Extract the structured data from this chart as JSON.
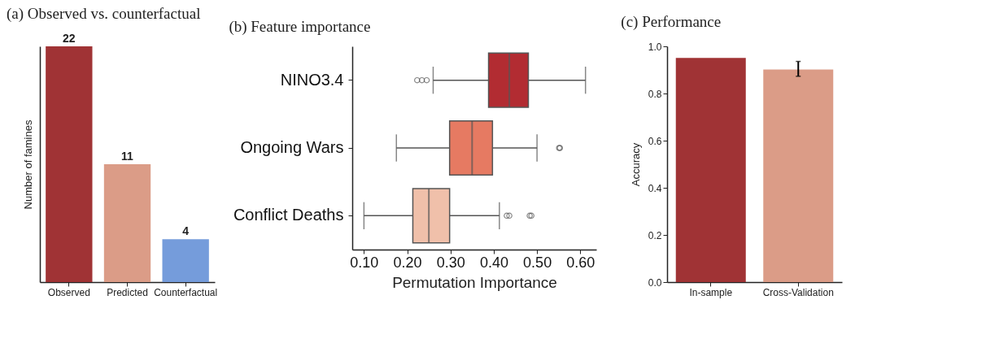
{
  "chart_data": [
    {
      "type": "bar",
      "title": "(a) Observed vs. counterfactual",
      "ylabel": "Number of famines",
      "categories": [
        "Observed",
        "Predicted",
        "Counterfactual"
      ],
      "values": [
        22,
        11,
        4
      ],
      "colors": [
        "#a03335",
        "#db9c87",
        "#759cdb"
      ],
      "data_labels": true
    },
    {
      "type": "box",
      "title": "(b) Feature importance",
      "xlabel": "Permutation Importance",
      "orientation": "horizontal",
      "categories": [
        "NINO3.4",
        "Ongoing Wars",
        "Conflict Deaths"
      ],
      "colors": [
        "#b22c32",
        "#e67a62",
        "#f0c0aa"
      ],
      "boxes": [
        {
          "low": 0.26,
          "q1": 0.388,
          "median": 0.436,
          "q3": 0.48,
          "high": 0.612,
          "outliers": [
            0.223,
            0.234,
            0.245
          ]
        },
        {
          "low": 0.175,
          "q1": 0.298,
          "median": 0.35,
          "q3": 0.397,
          "high": 0.5,
          "outliers": [
            0.551,
            0.553
          ]
        },
        {
          "low": 0.1,
          "q1": 0.213,
          "median": 0.25,
          "q3": 0.298,
          "high": 0.413,
          "outliers": [
            0.43,
            0.436,
            0.483,
            0.487
          ]
        }
      ],
      "xlim": [
        0.073,
        0.637
      ],
      "xticks": [
        {
          "value": 0.1,
          "label": "0.10"
        },
        {
          "value": 0.2,
          "label": "0.20"
        },
        {
          "value": 0.3,
          "label": "0.30"
        },
        {
          "value": 0.4,
          "label": "0.40"
        },
        {
          "value": 0.5,
          "label": "0.50"
        },
        {
          "value": 0.6,
          "label": "0.60"
        }
      ]
    },
    {
      "type": "bar",
      "title": "(c) Performance",
      "ylabel": "Accuracy",
      "categories": [
        "In-sample",
        "Cross-Validation"
      ],
      "values": [
        0.951,
        0.902
      ],
      "colors": [
        "#a03335",
        "#db9c87"
      ],
      "errors": [
        null,
        [
          0.873,
          0.936
        ]
      ],
      "ylim": [
        0,
        1
      ],
      "yticks": [
        {
          "value": 0,
          "label": "0.0"
        },
        {
          "value": 0.2,
          "label": "0.2"
        },
        {
          "value": 0.4,
          "label": "0.4"
        },
        {
          "value": 0.6,
          "label": "0.6"
        },
        {
          "value": 0.8,
          "label": "0.8"
        },
        {
          "value": 1,
          "label": "1.0"
        }
      ]
    }
  ]
}
